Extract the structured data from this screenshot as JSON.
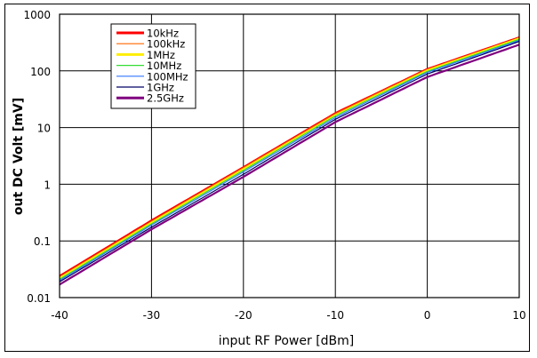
{
  "chart_data": {
    "type": "line",
    "title": "",
    "xlabel": "input RF Power [dBm]",
    "ylabel": "out DC Volt [mV]",
    "xlim": [
      -40,
      10
    ],
    "ylim": [
      0.01,
      1000
    ],
    "yscale": "log",
    "grid": true,
    "legend_position": "upper-left (inside plot)",
    "x_ticks": [
      "-40",
      "-30",
      "-20",
      "-10",
      "0",
      "10"
    ],
    "y_ticks": [
      "0.01",
      "0.1",
      "1",
      "10",
      "100",
      "1000"
    ],
    "x": [
      -40,
      -30,
      -20,
      -10,
      0,
      10
    ],
    "series": [
      {
        "name": "10kHz",
        "color": "#ff0000",
        "width": 2.2,
        "values": [
          0.024,
          0.23,
          2.0,
          18,
          108,
          390
        ]
      },
      {
        "name": "100kHz",
        "color": "#ff6600",
        "width": 1.2,
        "values": [
          0.023,
          0.22,
          1.95,
          17.5,
          106,
          380
        ]
      },
      {
        "name": "1MHz",
        "color": "#ffee00",
        "width": 2.2,
        "values": [
          0.022,
          0.21,
          1.85,
          16.5,
          102,
          375
        ]
      },
      {
        "name": "10MHz",
        "color": "#33dd33",
        "width": 1.2,
        "values": [
          0.021,
          0.2,
          1.75,
          16,
          98,
          360
        ]
      },
      {
        "name": "100MHz",
        "color": "#3377ff",
        "width": 1.2,
        "values": [
          0.02,
          0.19,
          1.65,
          15,
          94,
          345
        ]
      },
      {
        "name": "1GHz",
        "color": "#000066",
        "width": 1.2,
        "values": [
          0.019,
          0.175,
          1.5,
          14,
          88,
          330
        ]
      },
      {
        "name": "2.5GHz",
        "color": "#800080",
        "width": 2.2,
        "values": [
          0.017,
          0.16,
          1.35,
          12.5,
          78,
          290
        ]
      }
    ]
  }
}
